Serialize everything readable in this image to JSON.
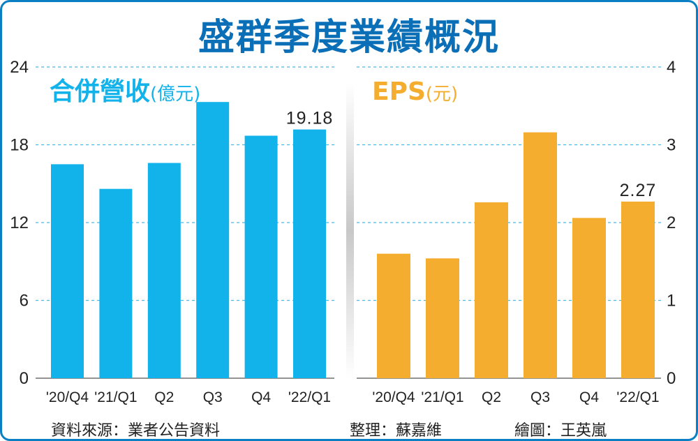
{
  "title": "盛群季度業績概況",
  "colors": {
    "revenue": "#12b2eb",
    "eps": "#f5ad2f",
    "title": "#0b6fb8",
    "grid": "#49b9e6",
    "border": "#0b7fc4"
  },
  "chart_data": [
    {
      "type": "bar",
      "title": "合併營收",
      "unit": "(億元)",
      "categories": [
        "'20/Q4",
        "'21/Q1",
        "Q2",
        "Q3",
        "Q4",
        "'22/Q1"
      ],
      "values": [
        16.5,
        14.6,
        16.6,
        21.3,
        18.7,
        19.18
      ],
      "ylim": [
        0,
        24
      ],
      "yticks": [
        "0",
        "6",
        "12",
        "18",
        "24"
      ],
      "annotation": "19.18",
      "axis_side": "left",
      "grid": true
    },
    {
      "type": "bar",
      "title": "EPS",
      "unit": "(元)",
      "categories": [
        "'20/Q4",
        "'21/Q1",
        "Q2",
        "Q3",
        "Q4",
        "'22/Q1"
      ],
      "values": [
        1.6,
        1.54,
        2.26,
        3.16,
        2.06,
        2.27
      ],
      "ylim": [
        0,
        4
      ],
      "yticks": [
        "0",
        "1",
        "2",
        "3",
        "4"
      ],
      "annotation": "2.27",
      "axis_side": "right",
      "grid": true
    }
  ],
  "footer": {
    "source": "資料來源：業者公告資料",
    "editor": "整理：蘇嘉維",
    "artist": "繪圖：王英嵐"
  }
}
